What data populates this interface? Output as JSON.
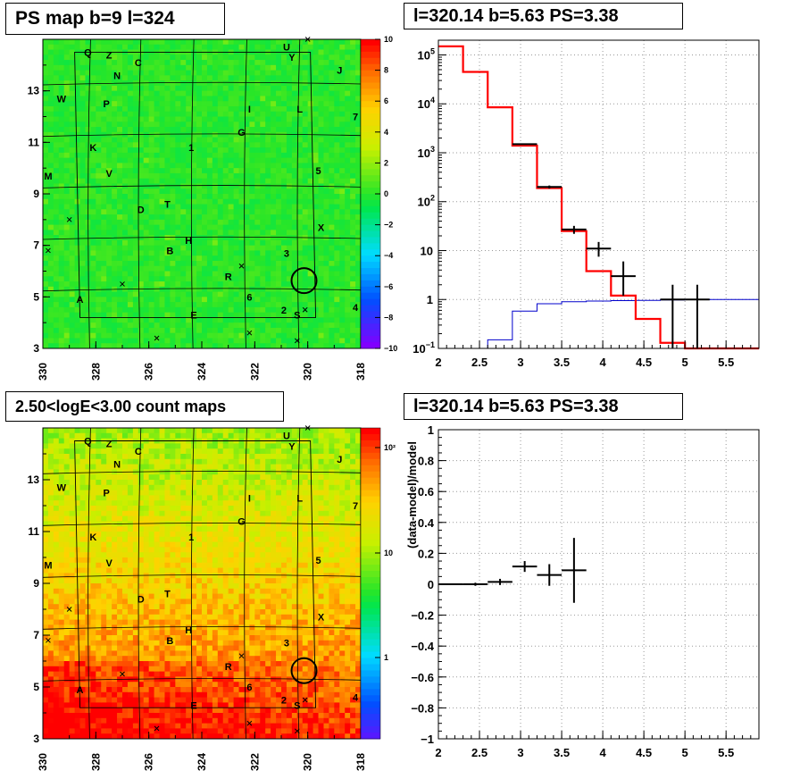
{
  "map1_title": "PS map b=9 l=324",
  "map2_title": "2.50<logE<3.00 count maps",
  "panel3_title": "l=320.14 b=5.63 PS=3.38",
  "panel4_title": "l=320.14 b=5.63 PS=3.38",
  "resid_ylabel": "(data-model)/model",
  "chart_data": [
    {
      "type": "heatmap",
      "name": "PS map",
      "x_ticks": [
        "330",
        "328",
        "326",
        "324",
        "322",
        "320",
        "318"
      ],
      "y_ticks": [
        "3",
        "5",
        "7",
        "9",
        "11",
        "13"
      ],
      "xlim": [
        330,
        318
      ],
      "ylim": [
        3,
        15
      ],
      "colorbar_ticks": [
        "10",
        "8",
        "6",
        "4",
        "2",
        "0",
        "−2",
        "−4",
        "−6",
        "−8",
        "−10"
      ],
      "colorbar_range": [
        -10,
        10
      ],
      "circle": {
        "l": 320.14,
        "b": 5.63
      }
    },
    {
      "type": "heatmap",
      "name": "count map",
      "x_ticks": [
        "330",
        "328",
        "326",
        "324",
        "322",
        "320",
        "318"
      ],
      "y_ticks": [
        "3",
        "5",
        "7",
        "9",
        "11",
        "13"
      ],
      "xlim": [
        330,
        318
      ],
      "ylim": [
        3,
        15
      ],
      "colorbar_ticks": [
        "10²",
        "10",
        "1"
      ],
      "colorbar_scale": "log",
      "circle": {
        "l": 320.14,
        "b": 5.63
      }
    },
    {
      "type": "line",
      "x_ticks": [
        "2",
        "2.5",
        "3",
        "3.5",
        "4",
        "4.5",
        "5",
        "5.5"
      ],
      "xlim": [
        2,
        5.9
      ],
      "y_scale": "log",
      "ylim": [
        0.1,
        200000
      ],
      "y_ticks": [
        [
          "10",
          "−1"
        ],
        [
          "1",
          ""
        ],
        [
          "10",
          ""
        ],
        [
          "10",
          "2"
        ],
        [
          "10",
          "3"
        ],
        [
          "10",
          "4"
        ],
        [
          "10",
          "5"
        ]
      ],
      "grid": true,
      "model_steps": {
        "color": "#ff0000",
        "edges": [
          2.0,
          2.3,
          2.6,
          2.9,
          3.2,
          3.5,
          3.8,
          4.1,
          4.4,
          4.7,
          5.0,
          5.3,
          5.9
        ],
        "values": [
          150000,
          45000,
          8500,
          1400,
          190,
          25,
          3.8,
          1.2,
          0.4,
          0.13,
          0.1,
          0.1
        ]
      },
      "background_steps": {
        "color": "#0000cc",
        "edges": [
          2.6,
          2.9,
          3.2,
          3.5,
          3.8,
          4.1,
          4.4,
          4.7,
          5.0,
          5.3,
          5.9
        ],
        "values": [
          0.15,
          0.58,
          0.82,
          0.9,
          0.93,
          0.95,
          0.96,
          0.98,
          0.99,
          1.0
        ]
      },
      "data_points": [
        {
          "x": 3.05,
          "y": 1500,
          "xerr": 0.15,
          "ylo": 1460,
          "yhi": 1540
        },
        {
          "x": 3.35,
          "y": 200,
          "xerr": 0.15,
          "ylo": 186,
          "yhi": 214
        },
        {
          "x": 3.65,
          "y": 27,
          "xerr": 0.15,
          "ylo": 22,
          "yhi": 32
        },
        {
          "x": 3.95,
          "y": 11,
          "xerr": 0.15,
          "ylo": 7.5,
          "yhi": 15
        },
        {
          "x": 4.25,
          "y": 3,
          "xerr": 0.15,
          "ylo": 1.2,
          "yhi": 6
        },
        {
          "x": 4.85,
          "y": 1,
          "xerr": 0.15,
          "ylo": 0.1,
          "yhi": 2
        },
        {
          "x": 5.15,
          "y": 1,
          "xerr": 0.15,
          "ylo": 0.1,
          "yhi": 2
        }
      ]
    },
    {
      "type": "scatter",
      "x_ticks": [
        "2",
        "2.5",
        "3",
        "3.5",
        "4",
        "4.5",
        "5",
        "5.5"
      ],
      "xlim": [
        2,
        5.9
      ],
      "ylim": [
        -1,
        1
      ],
      "y_ticks": [
        "−1",
        "−0.8",
        "−0.6",
        "−0.4",
        "−0.2",
        "0",
        "0.2",
        "0.4",
        "0.6",
        "0.8",
        "1"
      ],
      "ylabel": "(data-model)/model",
      "grid": true,
      "points": [
        {
          "x": 2.15,
          "y": 0.0,
          "xerr": 0.15,
          "yerr": 0.005
        },
        {
          "x": 2.45,
          "y": 0.0,
          "xerr": 0.15,
          "yerr": 0.01
        },
        {
          "x": 2.75,
          "y": 0.015,
          "xerr": 0.15,
          "yerr": 0.02
        },
        {
          "x": 3.05,
          "y": 0.115,
          "xerr": 0.15,
          "yerr": 0.035
        },
        {
          "x": 3.35,
          "y": 0.06,
          "xerr": 0.15,
          "yerr": 0.07
        },
        {
          "x": 3.65,
          "y": 0.09,
          "xerr": 0.15,
          "yerr": 0.21
        }
      ]
    }
  ],
  "source_labels": [
    {
      "t": "Q",
      "l": 328.3,
      "b": 14.5
    },
    {
      "t": "Z",
      "l": 327.5,
      "b": 14.4
    },
    {
      "t": "C",
      "l": 326.4,
      "b": 14.1
    },
    {
      "t": "N",
      "l": 327.2,
      "b": 13.6
    },
    {
      "t": "U",
      "l": 320.8,
      "b": 14.7
    },
    {
      "t": "Y",
      "l": 320.6,
      "b": 14.3
    },
    {
      "t": "J",
      "l": 318.8,
      "b": 13.8
    },
    {
      "t": "W",
      "l": 329.3,
      "b": 12.7
    },
    {
      "t": "P",
      "l": 327.6,
      "b": 12.5
    },
    {
      "t": "I",
      "l": 322.2,
      "b": 12.3
    },
    {
      "t": "L",
      "l": 320.3,
      "b": 12.3
    },
    {
      "t": "7",
      "l": 318.2,
      "b": 12.0
    },
    {
      "t": "G",
      "l": 322.5,
      "b": 11.4
    },
    {
      "t": "K",
      "l": 328.1,
      "b": 10.8
    },
    {
      "t": "1",
      "l": 324.4,
      "b": 10.8
    },
    {
      "t": "M",
      "l": 329.8,
      "b": 9.7
    },
    {
      "t": "V",
      "l": 327.5,
      "b": 9.8
    },
    {
      "t": "5",
      "l": 319.6,
      "b": 9.9
    },
    {
      "t": "D",
      "l": 326.3,
      "b": 8.4
    },
    {
      "t": "T",
      "l": 325.3,
      "b": 8.6
    },
    {
      "t": "X",
      "l": 319.5,
      "b": 7.7
    },
    {
      "t": "H",
      "l": 324.5,
      "b": 7.2
    },
    {
      "t": "B",
      "l": 325.2,
      "b": 6.8
    },
    {
      "t": "3",
      "l": 320.8,
      "b": 6.7
    },
    {
      "t": "R",
      "l": 323.0,
      "b": 5.8
    },
    {
      "t": "6",
      "l": 322.2,
      "b": 5.0
    },
    {
      "t": "A",
      "l": 328.6,
      "b": 4.9
    },
    {
      "t": "2",
      "l": 320.9,
      "b": 4.5
    },
    {
      "t": "S",
      "l": 320.4,
      "b": 4.3
    },
    {
      "t": "E",
      "l": 324.3,
      "b": 4.3
    },
    {
      "t": "4",
      "l": 318.2,
      "b": 4.6
    }
  ],
  "cross_marks": [
    {
      "l": 320.0,
      "b": 15.0
    },
    {
      "l": 329.0,
      "b": 8.0
    },
    {
      "l": 329.8,
      "b": 6.8
    },
    {
      "l": 327.0,
      "b": 5.5
    },
    {
      "l": 322.5,
      "b": 6.2
    },
    {
      "l": 320.1,
      "b": 4.5
    },
    {
      "l": 322.2,
      "b": 3.6
    },
    {
      "l": 325.7,
      "b": 3.4
    },
    {
      "l": 320.4,
      "b": 3.3
    }
  ]
}
